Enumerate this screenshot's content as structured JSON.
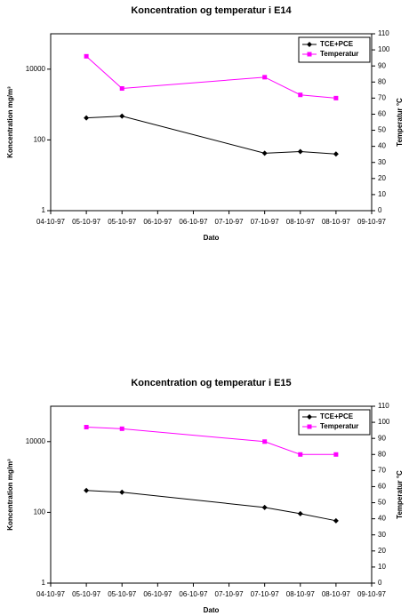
{
  "chart_data": [
    {
      "type": "line",
      "title": "Koncentration og temperatur i E14",
      "x_label": "Dato",
      "y_label": "Koncentration mg/m³",
      "y2_label": "Temperatur °C",
      "xlim": [
        0,
        9
      ],
      "xticks": [
        {
          "value": 0,
          "label": "04-10-97"
        },
        {
          "value": 1,
          "label": "05-10-97"
        },
        {
          "value": 2,
          "label": "05-10-97"
        },
        {
          "value": 3,
          "label": "06-10-97"
        },
        {
          "value": 4,
          "label": "06-10-97"
        },
        {
          "value": 5,
          "label": "07-10-97"
        },
        {
          "value": 6,
          "label": "07-10-97"
        },
        {
          "value": 7,
          "label": "08-10-97"
        },
        {
          "value": 8,
          "label": "08-10-97"
        },
        {
          "value": 9,
          "label": "09-10-97"
        }
      ],
      "ylim": [
        1,
        100000
      ],
      "yticks": [
        1,
        100,
        10000
      ],
      "log_y": true,
      "y2lim": [
        0,
        110
      ],
      "y2ticks": [
        0,
        10,
        20,
        30,
        40,
        50,
        60,
        70,
        80,
        90,
        100,
        110
      ],
      "legend": "upper right",
      "series": [
        {
          "name": "TCE+PCE",
          "color": "#000000",
          "marker": "diamond",
          "x": [
            1,
            2,
            6,
            7,
            8
          ],
          "values": [
            420,
            470,
            42,
            47,
            40
          ]
        },
        {
          "name": "Temperatur",
          "color": "#ff00ff",
          "marker": "square",
          "axis": "y2",
          "x": [
            1,
            2,
            6,
            7,
            8
          ],
          "values": [
            96,
            76,
            83,
            72,
            70
          ]
        }
      ]
    },
    {
      "type": "line",
      "title": "Koncentration og temperatur i E15",
      "x_label": "Dato",
      "y_label": "Koncentration mg/m³",
      "y2_label": "Temperatur °C",
      "xlim": [
        0,
        9
      ],
      "xticks": [
        {
          "value": 0,
          "label": "04-10-97"
        },
        {
          "value": 1,
          "label": "05-10-97"
        },
        {
          "value": 2,
          "label": "05-10-97"
        },
        {
          "value": 3,
          "label": "06-10-97"
        },
        {
          "value": 4,
          "label": "06-10-97"
        },
        {
          "value": 5,
          "label": "07-10-97"
        },
        {
          "value": 6,
          "label": "07-10-97"
        },
        {
          "value": 7,
          "label": "08-10-97"
        },
        {
          "value": 8,
          "label": "08-10-97"
        },
        {
          "value": 9,
          "label": "09-10-97"
        }
      ],
      "ylim": [
        1,
        100000
      ],
      "yticks": [
        1,
        100,
        10000
      ],
      "log_y": true,
      "y2lim": [
        0,
        110
      ],
      "y2ticks": [
        0,
        10,
        20,
        30,
        40,
        50,
        60,
        70,
        80,
        90,
        100,
        110
      ],
      "legend": "upper right",
      "series": [
        {
          "name": "TCE+PCE",
          "color": "#000000",
          "marker": "diamond",
          "x": [
            1,
            2,
            6,
            7,
            8
          ],
          "values": [
            415,
            370,
            138,
            92,
            58
          ]
        },
        {
          "name": "Temperatur",
          "color": "#ff00ff",
          "marker": "square",
          "axis": "y2",
          "x": [
            1,
            2,
            6,
            7,
            8
          ],
          "values": [
            97,
            96,
            88,
            80,
            80
          ]
        }
      ]
    }
  ]
}
